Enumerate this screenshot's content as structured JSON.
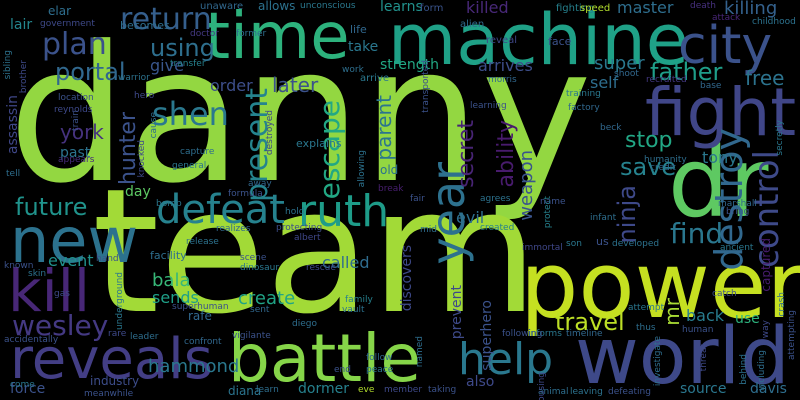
{
  "words": [
    {
      "text": "danny",
      "color": "#93d741",
      "vertical": false
    },
    {
      "text": "team",
      "color": "#a2da37",
      "vertical": false
    },
    {
      "text": "power",
      "color": "#c5e021",
      "vertical": false
    },
    {
      "text": "battle",
      "color": "#86d549",
      "vertical": false
    },
    {
      "text": "world",
      "color": "#3e4989",
      "vertical": false
    },
    {
      "text": "time",
      "color": "#2db27d",
      "vertical": false
    },
    {
      "text": "machine",
      "color": "#1fa187",
      "vertical": false
    },
    {
      "text": "dr",
      "color": "#5ec962",
      "vertical": false
    },
    {
      "text": "new",
      "color": "#2c728e",
      "vertical": false
    },
    {
      "text": "fight",
      "color": "#404688",
      "vertical": false
    },
    {
      "text": "city",
      "color": "#3b528b",
      "vertical": false
    },
    {
      "text": "reveals",
      "color": "#433e85",
      "vertical": false
    },
    {
      "text": "kill",
      "color": "#482777",
      "vertical": false
    },
    {
      "text": "defeat",
      "color": "#26828e",
      "vertical": false
    },
    {
      "text": "ruth",
      "color": "#1e9c89",
      "vertical": false
    },
    {
      "text": "help",
      "color": "#2a788e",
      "vertical": false
    },
    {
      "text": "year",
      "color": "#2d718e",
      "vertical": false
    },
    {
      "text": "destroy",
      "color": "#31688e",
      "vertical": false
    },
    {
      "text": "control",
      "color": "#3e4a89",
      "vertical": false
    },
    {
      "text": "shen",
      "color": "#2a788e",
      "vertical": false
    },
    {
      "text": "wesley",
      "color": "#443983",
      "vertical": false
    },
    {
      "text": "plan",
      "color": "#3b528b",
      "vertical": false
    },
    {
      "text": "return",
      "color": "#355f8d",
      "vertical": false
    },
    {
      "text": "portal",
      "color": "#31688e",
      "vertical": false
    },
    {
      "text": "using",
      "color": "#2e6f8e",
      "vertical": false
    },
    {
      "text": "present",
      "color": "#25848e",
      "vertical": false
    },
    {
      "text": "escape",
      "color": "#22a884",
      "vertical": false
    },
    {
      "text": "hunter",
      "color": "#3b528b",
      "vertical": false
    },
    {
      "text": "future",
      "color": "#20938c",
      "vertical": false
    },
    {
      "text": "secret",
      "color": "#482475",
      "vertical": false
    },
    {
      "text": "ninja",
      "color": "#3e4989",
      "vertical": false
    },
    {
      "text": "father",
      "color": "#1f9e89",
      "vertical": false
    },
    {
      "text": "save",
      "color": "#26828e",
      "vertical": false
    },
    {
      "text": "find",
      "color": "#2a778e",
      "vertical": false
    },
    {
      "text": "stop",
      "color": "#22a785",
      "vertical": false
    },
    {
      "text": "tony",
      "color": "#2a788e",
      "vertical": false
    },
    {
      "text": "free",
      "color": "#2c738e",
      "vertical": false
    },
    {
      "text": "travel",
      "color": "#bddf26",
      "vertical": false
    },
    {
      "text": "hammond",
      "color": "#2a788e",
      "vertical": false
    },
    {
      "text": "create",
      "color": "#20a486",
      "vertical": false
    },
    {
      "text": "killing",
      "color": "#34618d",
      "vertical": false
    },
    {
      "text": "master",
      "color": "#2e6e8e",
      "vertical": false
    },
    {
      "text": "parent",
      "color": "#2b758e",
      "vertical": false
    },
    {
      "text": "ability",
      "color": "#481b6d",
      "vertical": false
    },
    {
      "text": "weapon",
      "color": "#3a548c",
      "vertical": false
    },
    {
      "text": "bala",
      "color": "#37b878",
      "vertical": false
    },
    {
      "text": "sends",
      "color": "#1fa088",
      "vertical": false
    },
    {
      "text": "called",
      "color": "#2f6c8e",
      "vertical": false
    },
    {
      "text": "york",
      "color": "#46327e",
      "vertical": false
    },
    {
      "text": "event",
      "color": "#21918c",
      "vertical": false
    },
    {
      "text": "later",
      "color": "#3b528b",
      "vertical": false
    },
    {
      "text": "give",
      "color": "#39568c",
      "vertical": false
    },
    {
      "text": "order",
      "color": "#3d4e8a",
      "vertical": false
    },
    {
      "text": "arrives",
      "color": "#3d4e8a",
      "vertical": false
    },
    {
      "text": "super",
      "color": "#2a788e",
      "vertical": false
    },
    {
      "text": "self",
      "color": "#2e6e8e",
      "vertical": false
    },
    {
      "text": "mr",
      "color": "#a8db34",
      "vertical": false
    },
    {
      "text": "back",
      "color": "#287c8e",
      "vertical": false
    },
    {
      "text": "use",
      "color": "#2db27d",
      "vertical": false
    },
    {
      "text": "evil",
      "color": "#2e6f8e",
      "vertical": false
    },
    {
      "text": "discovers",
      "color": "#3e4989",
      "vertical": false
    },
    {
      "text": "superhero",
      "color": "#3b528b",
      "vertical": false
    },
    {
      "text": "prevent",
      "color": "#3e4a89",
      "vertical": false
    },
    {
      "text": "also",
      "color": "#3e4989",
      "vertical": false
    },
    {
      "text": "learns",
      "color": "#21918c",
      "vertical": false
    },
    {
      "text": "killed",
      "color": "#482878",
      "vertical": false
    },
    {
      "text": "take",
      "color": "#2a778e",
      "vertical": false
    },
    {
      "text": "assassin",
      "color": "#3f4788",
      "vertical": false
    },
    {
      "text": "past",
      "color": "#2c738e",
      "vertical": false
    },
    {
      "text": "day",
      "color": "#5cc863",
      "vertical": false
    },
    {
      "text": "dormer",
      "color": "#26818e",
      "vertical": false
    },
    {
      "text": "diana",
      "color": "#2b748e",
      "vertical": false
    },
    {
      "text": "davis",
      "color": "#2e6e8e",
      "vertical": false
    },
    {
      "text": "source",
      "color": "#2a778e",
      "vertical": false
    },
    {
      "text": "force",
      "color": "#3b528b",
      "vertical": false
    },
    {
      "text": "industry",
      "color": "#3d4d8a",
      "vertical": false
    },
    {
      "text": "rafe",
      "color": "#31688e",
      "vertical": false
    },
    {
      "text": "captured",
      "color": "#481d6f",
      "vertical": false
    },
    {
      "text": "lair",
      "color": "#24868e",
      "vertical": false
    },
    {
      "text": "elar",
      "color": "#2e6e8e",
      "vertical": false
    },
    {
      "text": "strength",
      "color": "#22a884",
      "vertical": false
    },
    {
      "text": "face",
      "color": "#3b528b",
      "vertical": false
    },
    {
      "text": "fighting",
      "color": "#26818e",
      "vertical": false
    },
    {
      "text": "speed",
      "color": "#b2dd2d",
      "vertical": false
    },
    {
      "text": "alien",
      "color": "#2f6b8e",
      "vertical": false
    },
    {
      "text": "allows",
      "color": "#2c728e",
      "vertical": false
    },
    {
      "text": "becomes",
      "color": "#2e6e8e",
      "vertical": false
    },
    {
      "text": "life",
      "color": "#31688e",
      "vertical": false
    },
    {
      "text": "form",
      "color": "#3a548c",
      "vertical": false
    },
    {
      "text": "unaware",
      "color": "#31688e",
      "vertical": false
    },
    {
      "text": "unconscious",
      "color": "#2a788e",
      "vertical": false
    },
    {
      "text": "government",
      "color": "#3e4989",
      "vertical": false
    },
    {
      "text": "warrior",
      "color": "#2c728e",
      "vertical": false
    },
    {
      "text": "arrive",
      "color": "#2a788e",
      "vertical": false
    },
    {
      "text": "reveal",
      "color": "#3f4788",
      "vertical": false
    },
    {
      "text": "work",
      "color": "#2e6f8e",
      "vertical": false
    },
    {
      "text": "morris",
      "color": "#31688e",
      "vertical": false
    },
    {
      "text": "shoot",
      "color": "#31688e",
      "vertical": false
    },
    {
      "text": "training",
      "color": "#2a778e",
      "vertical": false
    },
    {
      "text": "learning",
      "color": "#3b528b",
      "vertical": false
    },
    {
      "text": "factory",
      "color": "#31688e",
      "vertical": false
    },
    {
      "text": "beck",
      "color": "#31688e",
      "vertical": false
    },
    {
      "text": "base",
      "color": "#31688e",
      "vertical": false
    },
    {
      "text": "recruited",
      "color": "#443983",
      "vertical": false
    },
    {
      "text": "childhood",
      "color": "#2c728e",
      "vertical": false
    },
    {
      "text": "attack",
      "color": "#482677",
      "vertical": false
    },
    {
      "text": "death",
      "color": "#46307e",
      "vertical": false
    },
    {
      "text": "location",
      "color": "#3b528b",
      "vertical": false
    },
    {
      "text": "transfer",
      "color": "#26818e",
      "vertical": false
    },
    {
      "text": "hero",
      "color": "#3e4989",
      "vertical": false
    },
    {
      "text": "capture",
      "color": "#2e6e8e",
      "vertical": false
    },
    {
      "text": "general",
      "color": "#2a778e",
      "vertical": false
    },
    {
      "text": "formula",
      "color": "#3b528b",
      "vertical": false
    },
    {
      "text": "realizes",
      "color": "#31688e",
      "vertical": false
    },
    {
      "text": "protecting",
      "color": "#3d4e8a",
      "vertical": false
    },
    {
      "text": "hold",
      "color": "#2c728e",
      "vertical": false
    },
    {
      "text": "albert",
      "color": "#3f4788",
      "vertical": false
    },
    {
      "text": "scene",
      "color": "#3b528b",
      "vertical": false
    },
    {
      "text": "dinosaur",
      "color": "#2a778e",
      "vertical": false
    },
    {
      "text": "rescue",
      "color": "#3e4a89",
      "vertical": false
    },
    {
      "text": "release",
      "color": "#2c728e",
      "vertical": false
    },
    {
      "text": "hand",
      "color": "#3b528b",
      "vertical": false
    },
    {
      "text": "superhuman",
      "color": "#3b528b",
      "vertical": false
    },
    {
      "text": "sent",
      "color": "#31688e",
      "vertical": false
    },
    {
      "text": "family",
      "color": "#26818e",
      "vertical": false
    },
    {
      "text": "vault",
      "color": "#2c728e",
      "vertical": false
    },
    {
      "text": "diego",
      "color": "#2e6e8e",
      "vertical": false
    },
    {
      "text": "vigilante",
      "color": "#3b528b",
      "vertical": false
    },
    {
      "text": "confront",
      "color": "#31688e",
      "vertical": false
    },
    {
      "text": "leader",
      "color": "#2e6e8e",
      "vertical": false
    },
    {
      "text": "rare",
      "color": "#3e4989",
      "vertical": false
    },
    {
      "text": "come",
      "color": "#2a778e",
      "vertical": false
    },
    {
      "text": "meanwhile",
      "color": "#3b528b",
      "vertical": false
    },
    {
      "text": "learn",
      "color": "#2e6e8e",
      "vertical": false
    },
    {
      "text": "end",
      "color": "#3b528b",
      "vertical": false
    },
    {
      "text": "follow",
      "color": "#31688e",
      "vertical": false
    },
    {
      "text": "peace",
      "color": "#2c728e",
      "vertical": false
    },
    {
      "text": "member",
      "color": "#3e4989",
      "vertical": false
    },
    {
      "text": "eve",
      "color": "#b2dd2d",
      "vertical": false
    },
    {
      "text": "taking",
      "color": "#3b528b",
      "vertical": false
    },
    {
      "text": "informs",
      "color": "#2a778e",
      "vertical": false
    },
    {
      "text": "timeline",
      "color": "#31688e",
      "vertical": false
    },
    {
      "text": "following",
      "color": "#3b528b",
      "vertical": false
    },
    {
      "text": "animal",
      "color": "#2e6e8e",
      "vertical": false
    },
    {
      "text": "leaving",
      "color": "#2c728e",
      "vertical": false
    },
    {
      "text": "defeating",
      "color": "#3b528b",
      "vertical": false
    },
    {
      "text": "immortal",
      "color": "#3f4788",
      "vertical": false
    },
    {
      "text": "son",
      "color": "#2a778e",
      "vertical": false
    },
    {
      "text": "developed",
      "color": "#2c728e",
      "vertical": false
    },
    {
      "text": "us",
      "color": "#3b528b",
      "vertical": false
    },
    {
      "text": "infant",
      "color": "#2e6e8e",
      "vertical": false
    },
    {
      "text": "marshall",
      "color": "#31688e",
      "vertical": false
    },
    {
      "text": "bring",
      "color": "#3b528b",
      "vertical": false
    },
    {
      "text": "ancient",
      "color": "#2a778e",
      "vertical": false
    },
    {
      "text": "humanity",
      "color": "#2e6e8e",
      "vertical": false
    },
    {
      "text": "credit",
      "color": "#31688e",
      "vertical": false
    },
    {
      "text": "name",
      "color": "#3b528b",
      "vertical": false
    },
    {
      "text": "agrees",
      "color": "#2c728e",
      "vertical": false
    },
    {
      "text": "created",
      "color": "#26818e",
      "vertical": false
    },
    {
      "text": "mid",
      "color": "#2e6e8e",
      "vertical": false
    },
    {
      "text": "fair",
      "color": "#3b528b",
      "vertical": false
    },
    {
      "text": "break",
      "color": "#481f70",
      "vertical": false
    },
    {
      "text": "old",
      "color": "#2c728e",
      "vertical": false
    },
    {
      "text": "catch",
      "color": "#3b528b",
      "vertical": false
    },
    {
      "text": "thus",
      "color": "#2e6e8e",
      "vertical": false
    },
    {
      "text": "human",
      "color": "#3b528b",
      "vertical": false
    },
    {
      "text": "attempt",
      "color": "#2a778e",
      "vertical": false
    },
    {
      "text": "skin",
      "color": "#2c728e",
      "vertical": false
    },
    {
      "text": "gas",
      "color": "#3e4989",
      "vertical": false
    },
    {
      "text": "known",
      "color": "#3b528b",
      "vertical": false
    },
    {
      "text": "tell",
      "color": "#2e6e8e",
      "vertical": false
    },
    {
      "text": "accidentally",
      "color": "#3b528b",
      "vertical": false
    },
    {
      "text": "bomb",
      "color": "#2a778e",
      "vertical": false
    },
    {
      "text": "away",
      "color": "#31688e",
      "vertical": false
    },
    {
      "text": "reynolds",
      "color": "#3e4989",
      "vertical": false
    },
    {
      "text": "appears",
      "color": "#472c7a",
      "vertical": false
    },
    {
      "text": "sibling",
      "color": "#2c728e",
      "vertical": false
    },
    {
      "text": "brother",
      "color": "#3e4a89",
      "vertical": false
    },
    {
      "text": "doctor",
      "color": "#443983",
      "vertical": false
    },
    {
      "text": "former",
      "color": "#2e6e8e",
      "vertical": false
    },
    {
      "text": "crash",
      "color": "#2e6e8e",
      "vertical": false
    },
    {
      "text": "way",
      "color": "#3e4989",
      "vertical": false
    },
    {
      "text": "secretly",
      "color": "#2a778e",
      "vertical": false
    },
    {
      "text": "attempting",
      "color": "#3b528b",
      "vertical": false
    },
    {
      "text": "facility",
      "color": "#2e6e8e",
      "vertical": false
    },
    {
      "text": "underground",
      "color": "#2a778e",
      "vertical": false
    },
    {
      "text": "including",
      "color": "#2e6e8e",
      "vertical": false
    },
    {
      "text": "behind",
      "color": "#2c728e",
      "vertical": false
    },
    {
      "text": "threat",
      "color": "#3e4989",
      "vertical": false
    },
    {
      "text": "investigate",
      "color": "#2e6e8e",
      "vertical": false
    },
    {
      "text": "protect",
      "color": "#26818e",
      "vertical": false
    },
    {
      "text": "allowing",
      "color": "#2c728e",
      "vertical": false
    },
    {
      "text": "explains",
      "color": "#2a778e",
      "vertical": false
    },
    {
      "text": "named",
      "color": "#2e6e8e",
      "vertical": false
    },
    {
      "text": "transported",
      "color": "#3b528b",
      "vertical": false
    },
    {
      "text": "destroyed",
      "color": "#3e4989",
      "vertical": false
    },
    {
      "text": "knocked",
      "color": "#3e4a89",
      "vertical": false
    },
    {
      "text": "train",
      "color": "#3b528b",
      "vertical": false
    },
    {
      "text": "cause",
      "color": "#2e6e8e",
      "vertical": false
    },
    {
      "text": "housing",
      "color": "#3e4989",
      "vertical": false
    }
  ]
}
